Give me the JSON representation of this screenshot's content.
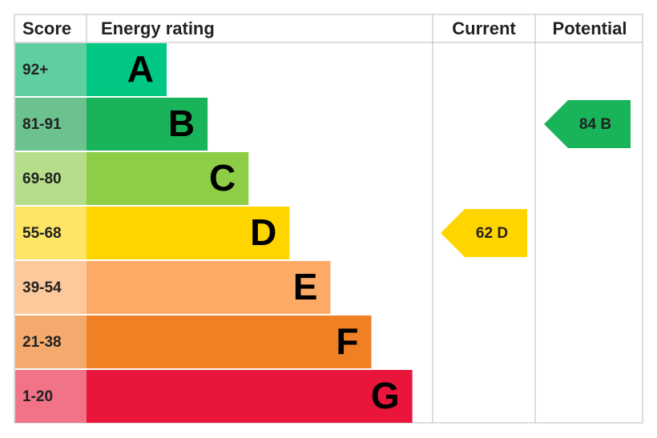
{
  "header": {
    "score": "Score",
    "rating": "Energy rating",
    "current": "Current",
    "potential": "Potential"
  },
  "bands": [
    {
      "score": "92+",
      "letter": "A",
      "color": "#00c781",
      "score_color": "#5fcf9f"
    },
    {
      "score": "81-91",
      "letter": "B",
      "color": "#19b459",
      "score_color": "#6cc28f"
    },
    {
      "score": "69-80",
      "letter": "C",
      "color": "#8dce46",
      "score_color": "#b6de8a"
    },
    {
      "score": "55-68",
      "letter": "D",
      "color": "#ffd500",
      "score_color": "#ffe566"
    },
    {
      "score": "39-54",
      "letter": "E",
      "color": "#fcaa65",
      "score_color": "#fdc89c"
    },
    {
      "score": "21-38",
      "letter": "F",
      "color": "#ef8023",
      "score_color": "#f4aa6d"
    },
    {
      "score": "1-20",
      "letter": "G",
      "color": "#e9153b",
      "score_color": "#f07388"
    }
  ],
  "current": {
    "score": 62,
    "letter": "D"
  },
  "potential": {
    "score": 84,
    "letter": "B"
  }
}
